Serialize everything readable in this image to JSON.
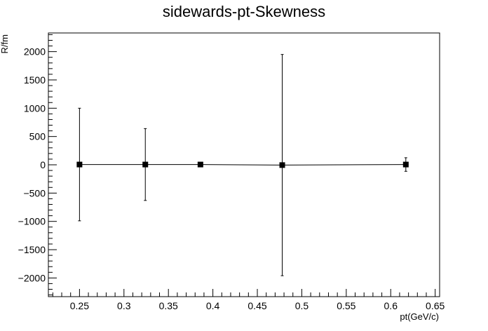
{
  "chart_data": {
    "type": "scatter",
    "title": "sidewards-pt-Skewness",
    "xlabel": "pt(GeV/c)",
    "ylabel": "R/fm",
    "xlim": [
      0.215,
      0.655
    ],
    "ylim": [
      -2330,
      2330
    ],
    "x_ticks": [
      0.25,
      0.3,
      0.35,
      0.4,
      0.45,
      0.5,
      0.55,
      0.6,
      0.65
    ],
    "x_tick_labels": [
      "0.25",
      "0.3",
      "0.35",
      "0.4",
      "0.45",
      "0.5",
      "0.55",
      "0.6",
      "0.65"
    ],
    "y_ticks": [
      -2000,
      -1500,
      -1000,
      -500,
      0,
      500,
      1000,
      1500,
      2000
    ],
    "y_tick_labels": [
      "−2000",
      "−1500",
      "−1000",
      "−500",
      "0",
      "500",
      "1000",
      "1500",
      "2000"
    ],
    "grid": false,
    "series": [
      {
        "marker": "square",
        "color": "#000000",
        "points": [
          {
            "x": 0.25,
            "y": 5,
            "err": 995
          },
          {
            "x": 0.324,
            "y": 5,
            "err": 635
          },
          {
            "x": 0.386,
            "y": 5,
            "err": 0
          },
          {
            "x": 0.478,
            "y": -5,
            "err": 1955
          },
          {
            "x": 0.617,
            "y": 5,
            "err": 120
          }
        ]
      }
    ]
  }
}
